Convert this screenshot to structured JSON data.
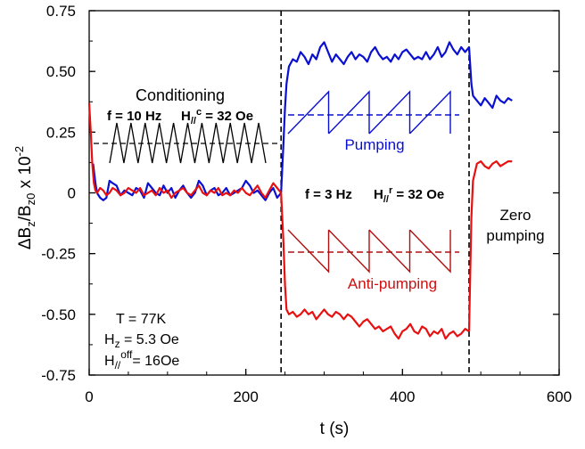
{
  "chart_data": {
    "type": "line",
    "title": "",
    "xlabel": "t (s)",
    "ylabel_main": "ΔB",
    "ylabel_sub1": "z",
    "ylabel_mid": "/B",
    "ylabel_sub2": "z0",
    "ylabel_tail": " x 10",
    "ylabel_exp": "-2",
    "xlim": [
      0,
      600
    ],
    "ylim": [
      -0.75,
      0.75
    ],
    "xticks": [
      0,
      200,
      400,
      600
    ],
    "xtick_labels": [
      "0",
      "200",
      "400",
      "600"
    ],
    "yticks": [
      0.75,
      0.5,
      0.25,
      0,
      -0.25,
      -0.5,
      -0.75
    ],
    "ytick_labels": [
      "0.75",
      "0.50",
      "0.25",
      "0",
      "-0.25",
      "-0.50",
      "-0.75"
    ],
    "vlines": [
      245,
      485
    ],
    "grid": false,
    "colors": {
      "blue": "#0a10d0",
      "red": "#e81010",
      "black": "#000000"
    },
    "series": [
      {
        "color": "blue",
        "x": [
          5,
          8,
          10,
          14,
          18,
          22,
          26,
          30,
          35,
          40,
          45,
          50,
          55,
          60,
          65,
          70,
          75,
          80,
          85,
          90,
          95,
          100,
          105,
          110,
          115,
          120,
          125,
          130,
          135,
          140,
          145,
          150,
          155,
          160,
          165,
          170,
          175,
          180,
          185,
          190,
          195,
          200,
          205,
          210,
          215,
          220,
          225,
          230,
          235,
          240,
          245
        ],
        "y": [
          0.12,
          0.04,
          0.0,
          -0.02,
          -0.03,
          -0.02,
          0.05,
          0.04,
          0.03,
          -0.01,
          0.01,
          0.0,
          -0.01,
          0.02,
          0.01,
          -0.02,
          0.04,
          0.02,
          0.0,
          -0.01,
          0.03,
          0.0,
          0.02,
          -0.02,
          0.01,
          0.03,
          0.0,
          -0.02,
          0.0,
          0.05,
          0.03,
          -0.01,
          0.01,
          0.02,
          -0.01,
          0.0,
          0.02,
          -0.01,
          0.0,
          0.01,
          0.02,
          0.05,
          0.03,
          0.0,
          0.01,
          -0.01,
          -0.03,
          0.0,
          0.02,
          -0.02,
          0.0
        ]
      },
      {
        "color": "blue",
        "x": [
          245,
          248,
          250,
          252,
          255,
          260,
          265,
          270,
          275,
          280,
          285,
          290,
          295,
          300,
          305,
          310,
          315,
          320,
          325,
          330,
          335,
          340,
          345,
          350,
          355,
          360,
          365,
          370,
          375,
          380,
          385,
          390,
          395,
          400,
          405,
          410,
          415,
          420,
          425,
          430,
          435,
          440,
          445,
          450,
          455,
          460,
          465,
          470,
          475,
          480,
          485
        ],
        "y": [
          0.0,
          0.2,
          0.35,
          0.45,
          0.52,
          0.55,
          0.54,
          0.58,
          0.56,
          0.53,
          0.57,
          0.55,
          0.6,
          0.62,
          0.58,
          0.54,
          0.57,
          0.55,
          0.53,
          0.56,
          0.58,
          0.55,
          0.57,
          0.56,
          0.54,
          0.58,
          0.6,
          0.57,
          0.55,
          0.56,
          0.54,
          0.57,
          0.55,
          0.58,
          0.59,
          0.57,
          0.55,
          0.56,
          0.55,
          0.58,
          0.55,
          0.57,
          0.6,
          0.56,
          0.58,
          0.62,
          0.59,
          0.57,
          0.6,
          0.58,
          0.6
        ]
      },
      {
        "color": "blue",
        "x": [
          485,
          488,
          490,
          495,
          500,
          505,
          510,
          515,
          520,
          525,
          530,
          535,
          540
        ],
        "y": [
          0.6,
          0.45,
          0.4,
          0.38,
          0.36,
          0.39,
          0.37,
          0.35,
          0.4,
          0.38,
          0.37,
          0.39,
          0.38
        ]
      },
      {
        "color": "red",
        "x": [
          0,
          2,
          4,
          6,
          8,
          10,
          14,
          18,
          22,
          26,
          30,
          35,
          40,
          45,
          50,
          55,
          60,
          65,
          70,
          75,
          80,
          85,
          90,
          95,
          100,
          105,
          110,
          115,
          120,
          125,
          130,
          135,
          140,
          145,
          150,
          155,
          160,
          165,
          170,
          175,
          180,
          185,
          190,
          195,
          200,
          205,
          210,
          215,
          220,
          225,
          230,
          235,
          240,
          245
        ],
        "y": [
          0.37,
          0.25,
          0.12,
          0.04,
          0.01,
          0.0,
          0.02,
          0.01,
          -0.01,
          0.0,
          0.02,
          0.01,
          -0.01,
          0.0,
          0.02,
          0.01,
          0.0,
          0.02,
          -0.01,
          0.0,
          0.01,
          -0.01,
          0.02,
          0.0,
          0.01,
          -0.02,
          0.0,
          0.01,
          0.02,
          0.0,
          -0.01,
          0.01,
          0.03,
          0.0,
          -0.01,
          0.01,
          0.0,
          0.02,
          -0.01,
          0.0,
          -0.01,
          0.01,
          0.0,
          0.02,
          0.0,
          -0.01,
          0.01,
          0.03,
          0.0,
          -0.02,
          0.01,
          0.04,
          0.02,
          0.0
        ]
      },
      {
        "color": "red",
        "x": [
          245,
          248,
          250,
          252,
          255,
          260,
          265,
          270,
          275,
          280,
          285,
          290,
          295,
          300,
          305,
          310,
          315,
          320,
          325,
          330,
          335,
          340,
          345,
          350,
          355,
          360,
          365,
          370,
          375,
          380,
          385,
          390,
          395,
          400,
          405,
          410,
          415,
          420,
          425,
          430,
          435,
          440,
          445,
          450,
          455,
          460,
          465,
          470,
          475,
          480,
          485
        ],
        "y": [
          0.0,
          -0.2,
          -0.38,
          -0.48,
          -0.5,
          -0.49,
          -0.51,
          -0.5,
          -0.48,
          -0.5,
          -0.49,
          -0.52,
          -0.5,
          -0.48,
          -0.5,
          -0.51,
          -0.49,
          -0.5,
          -0.52,
          -0.5,
          -0.51,
          -0.53,
          -0.55,
          -0.53,
          -0.52,
          -0.54,
          -0.56,
          -0.55,
          -0.57,
          -0.56,
          -0.55,
          -0.58,
          -0.6,
          -0.57,
          -0.56,
          -0.54,
          -0.57,
          -0.58,
          -0.55,
          -0.56,
          -0.59,
          -0.57,
          -0.58,
          -0.56,
          -0.6,
          -0.58,
          -0.57,
          -0.59,
          -0.58,
          -0.56,
          -0.57
        ]
      },
      {
        "color": "red",
        "x": [
          485,
          488,
          490,
          495,
          500,
          505,
          510,
          515,
          520,
          525,
          530,
          535,
          540
        ],
        "y": [
          -0.57,
          -0.1,
          0.05,
          0.12,
          0.13,
          0.11,
          0.1,
          0.12,
          0.13,
          0.11,
          0.12,
          0.13,
          0.13
        ]
      }
    ],
    "annotations": {
      "conditioning": "Conditioning",
      "cond_freq": "f = 10 Hz",
      "cond_field_main": "H",
      "cond_field_sub": "//",
      "cond_field_sup": "c",
      "cond_field_value": " = 32 Oe",
      "pumping": "Pumping",
      "mid_freq": "f = 3 Hz",
      "mid_field_main": "H",
      "mid_field_sub": "//",
      "mid_field_sup": "r",
      "mid_field_value": " = 32 Oe",
      "anti_pumping": "Anti-pumping",
      "zero_1": "Zero",
      "zero_2": "pumping",
      "temp": "T = 77K",
      "hz_main": "H",
      "hz_sub": "z",
      "hz_value": " = 5.3 Oe",
      "hoff_main": "H",
      "hoff_sub": "//",
      "hoff_sup": "off",
      "hoff_value": "= 16Oe"
    }
  }
}
